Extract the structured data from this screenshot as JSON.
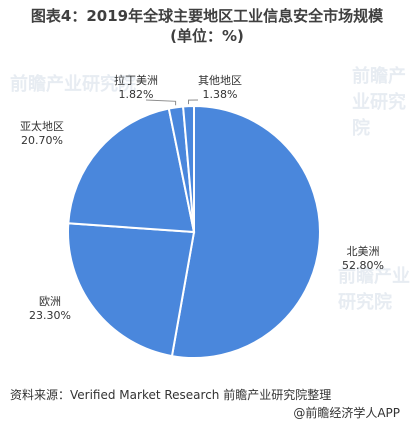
{
  "title_line1": "图表4：2019年全球主要地区工业信息安全市场规模",
  "title_line2": "(单位：%)",
  "source": "资料来源：Verified Market Research 前瞻产业研究院整理",
  "credit": "@前瞻经济学人APP",
  "watermark": "前瞻产业研究院",
  "colors": {
    "pie": "#4a87dc",
    "edge": "#ffffff",
    "leader": "#8c8c8c"
  },
  "chart_data": {
    "type": "pie",
    "title": "图表4：2019年全球主要地区工业信息安全市场规模 (单位：%)",
    "slices": [
      {
        "label": "北美洲",
        "value": 52.8,
        "value_label": "52.80%"
      },
      {
        "label": "欧洲",
        "value": 23.3,
        "value_label": "23.30%"
      },
      {
        "label": "亚太地区",
        "value": 20.7,
        "value_label": "20.70%"
      },
      {
        "label": "拉丁美洲",
        "value": 1.82,
        "value_label": "1.82%"
      },
      {
        "label": "其他地区",
        "value": 1.38,
        "value_label": "1.38%"
      }
    ]
  }
}
